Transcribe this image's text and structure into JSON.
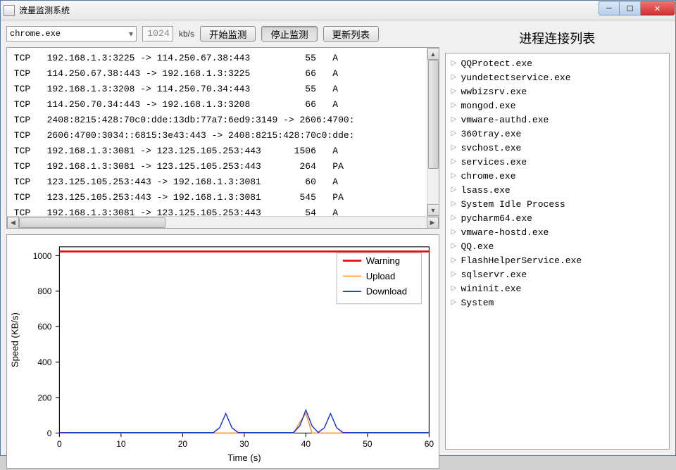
{
  "window": {
    "title": "流量监测系统"
  },
  "toolbar": {
    "process_selected": "chrome.exe",
    "limit_value": "1024",
    "unit": "kb/s",
    "start_label": "开始监测",
    "stop_label": "停止监测",
    "refresh_label": "更新列表"
  },
  "right": {
    "title": "进程连接列表",
    "processes": [
      "QQProtect.exe",
      "yundetectservice.exe",
      "wwbizsrv.exe",
      "mongod.exe",
      "vmware-authd.exe",
      "360tray.exe",
      "svchost.exe",
      "services.exe",
      "chrome.exe",
      "lsass.exe",
      "System Idle Process",
      "pycharm64.exe",
      "vmware-hostd.exe",
      "QQ.exe",
      "FlashHelperService.exe",
      "sqlservr.exe",
      "wininit.exe",
      "System"
    ]
  },
  "log_rows": [
    {
      "proto": "TCP",
      "conn": "192.168.1.3:3225 -> 114.250.67.38:443",
      "bytes": "55",
      "flag": "A"
    },
    {
      "proto": "TCP",
      "conn": "114.250.67.38:443 -> 192.168.1.3:3225",
      "bytes": "66",
      "flag": "A"
    },
    {
      "proto": "TCP",
      "conn": "192.168.1.3:3208 -> 114.250.70.34:443",
      "bytes": "55",
      "flag": "A"
    },
    {
      "proto": "TCP",
      "conn": "114.250.70.34:443 -> 192.168.1.3:3208",
      "bytes": "66",
      "flag": "A"
    },
    {
      "proto": "TCP",
      "conn": "2408:8215:428:70c0:dde:13db:77a7:6ed9:3149 -> 2606:4700:",
      "bytes": "",
      "flag": ""
    },
    {
      "proto": "TCP",
      "conn": "2606:4700:3034::6815:3e43:443 -> 2408:8215:428:70c0:dde:",
      "bytes": "",
      "flag": ""
    },
    {
      "proto": "TCP",
      "conn": "192.168.1.3:3081 -> 123.125.105.253:443",
      "bytes": "1506",
      "flag": "A"
    },
    {
      "proto": "TCP",
      "conn": "192.168.1.3:3081 -> 123.125.105.253:443",
      "bytes": "264",
      "flag": "PA"
    },
    {
      "proto": "TCP",
      "conn": "123.125.105.253:443 -> 192.168.1.3:3081",
      "bytes": "60",
      "flag": "A"
    },
    {
      "proto": "TCP",
      "conn": "123.125.105.253:443 -> 192.168.1.3:3081",
      "bytes": "545",
      "flag": "PA"
    },
    {
      "proto": "TCP",
      "conn": "192.168.1.3:3081 -> 123.125.105.253:443",
      "bytes": "54",
      "flag": "A"
    }
  ],
  "log_col_widths": {
    "proto": 6,
    "conn": 42,
    "bytes": 7,
    "flag": 5
  },
  "chart": {
    "type": "line",
    "xlabel": "Time (s)",
    "ylabel": "Speed (KB/s)",
    "xlim": [
      0,
      60
    ],
    "ylim": [
      0,
      1050
    ],
    "xticks": [
      0,
      10,
      20,
      30,
      40,
      50,
      60
    ],
    "yticks": [
      0,
      200,
      400,
      600,
      800,
      1000
    ],
    "label_fontsize": 12,
    "tick_fontsize": 11,
    "background_color": "#ffffff",
    "legend": {
      "items": [
        "Warning",
        "Upload",
        "Download"
      ],
      "position": "upper-right"
    },
    "series": [
      {
        "name": "Warning",
        "color": "#e01010",
        "width": 2.5,
        "x": [
          0,
          60
        ],
        "y": [
          1024,
          1024
        ]
      },
      {
        "name": "Upload",
        "color": "#ff9020",
        "width": 1.3,
        "x": [
          0,
          25,
          26,
          27,
          28,
          38,
          39,
          40,
          41,
          42,
          60
        ],
        "y": [
          0,
          0,
          0,
          0,
          0,
          0,
          60,
          110,
          0,
          0,
          0
        ]
      },
      {
        "name": "Download",
        "color": "#1030e0",
        "width": 1.3,
        "x": [
          0,
          25,
          26,
          27,
          28,
          29,
          38,
          39,
          40,
          41,
          42,
          43,
          44,
          45,
          46,
          60
        ],
        "y": [
          3,
          3,
          30,
          110,
          30,
          3,
          3,
          40,
          130,
          40,
          3,
          30,
          110,
          30,
          3,
          3
        ]
      }
    ]
  }
}
